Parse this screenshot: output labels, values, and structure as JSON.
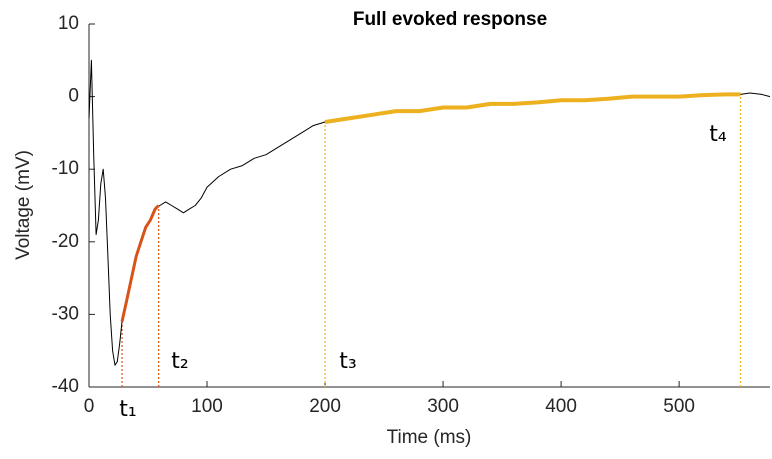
{
  "chart_data": {
    "type": "line",
    "title": "Full evoked response",
    "xlabel": "Time (ms)",
    "ylabel": "Voltage (mV)",
    "xlim": [
      0,
      577
    ],
    "ylim": [
      -40,
      10
    ],
    "xticks": [
      0,
      100,
      200,
      300,
      400,
      500
    ],
    "yticks": [
      -40,
      -30,
      -20,
      -10,
      0,
      10
    ],
    "series": [
      {
        "color": "#000000",
        "width": 1,
        "x": [
          0,
          2,
          4,
          6,
          8,
          10,
          12,
          14,
          16,
          18,
          20,
          22,
          24,
          26,
          28,
          32,
          36,
          40,
          44,
          48,
          52,
          56,
          60,
          65,
          70,
          75,
          80,
          85,
          90,
          95,
          100,
          110,
          120,
          130,
          140,
          150,
          160,
          170,
          180,
          190,
          200,
          220,
          240,
          260,
          280,
          300,
          320,
          340,
          360,
          380,
          400,
          420,
          440,
          460,
          480,
          500,
          520,
          540,
          552,
          560,
          570,
          577
        ],
        "values": [
          -3,
          5,
          -8,
          -19,
          -17,
          -12,
          -10,
          -14,
          -22,
          -30,
          -35,
          -37,
          -36.5,
          -34,
          -31,
          -28,
          -25,
          -22,
          -20,
          -18,
          -17,
          -15.5,
          -15,
          -14.5,
          -15,
          -15.5,
          -16,
          -15.5,
          -15,
          -14,
          -12.5,
          -11,
          -10,
          -9.5,
          -8.5,
          -8,
          -7,
          -6,
          -5,
          -4,
          -3.5,
          -3,
          -2.5,
          -2,
          -2,
          -1.5,
          -1.5,
          -1,
          -1,
          -0.8,
          -0.5,
          -0.5,
          -0.3,
          0,
          0,
          0,
          0.2,
          0.3,
          0.3,
          0.5,
          0.3,
          0
        ]
      },
      {
        "color": "#d95319",
        "width": 3,
        "x": [
          28,
          32,
          36,
          40,
          44,
          48,
          52,
          56,
          59
        ],
        "values": [
          -31,
          -28,
          -25,
          -22,
          -20,
          -18,
          -17,
          -15.5,
          -15
        ]
      },
      {
        "color": "#edb120",
        "width": 4,
        "x": [
          200,
          220,
          240,
          260,
          280,
          300,
          320,
          340,
          360,
          380,
          400,
          420,
          440,
          460,
          480,
          500,
          520,
          540,
          552
        ],
        "values": [
          -3.5,
          -3,
          -2.5,
          -2,
          -2,
          -1.5,
          -1.5,
          -1,
          -1,
          -0.8,
          -0.5,
          -0.5,
          -0.3,
          0,
          0,
          0,
          0.2,
          0.3,
          0.3
        ]
      }
    ],
    "annotations": [
      {
        "label": "t₁",
        "x": 28,
        "y": -31,
        "color": "#d95319"
      },
      {
        "label": "t₂",
        "x": 59,
        "y": -15,
        "color": "#d95319"
      },
      {
        "label": "t₃",
        "x": 200,
        "y": -3.5,
        "color": "#edb120"
      },
      {
        "label": "t₄",
        "x": 552,
        "y": 0.3,
        "color": "#edb120"
      }
    ]
  }
}
